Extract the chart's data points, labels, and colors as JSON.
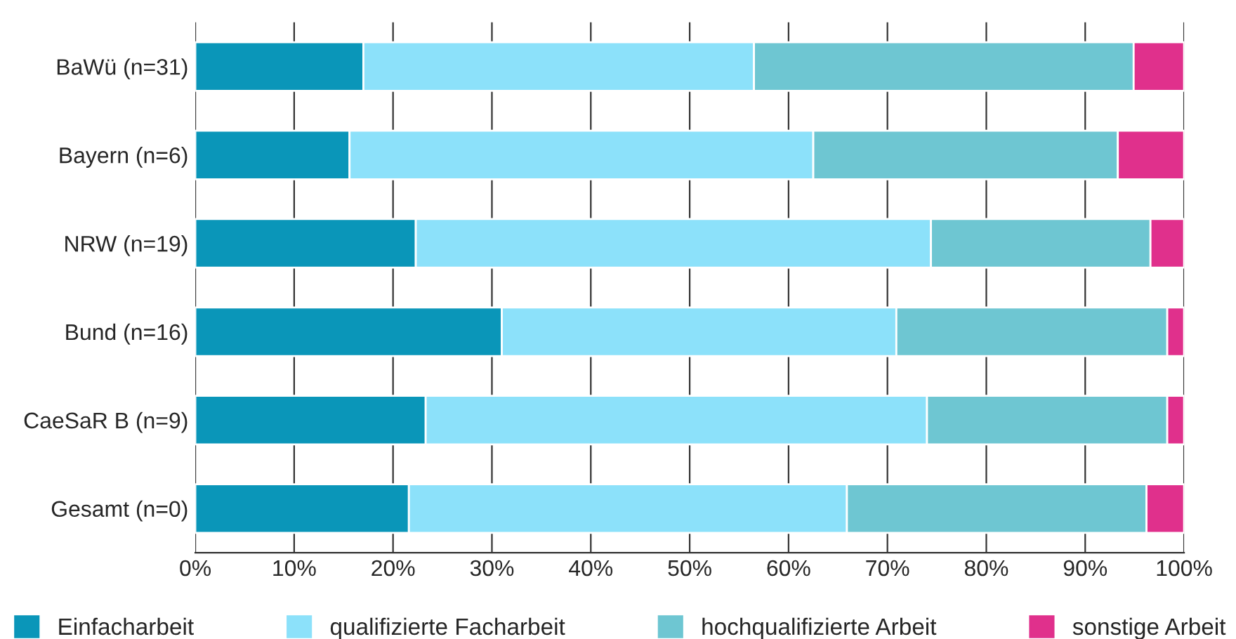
{
  "chart_data": {
    "type": "bar",
    "orientation": "horizontal",
    "stacked": true,
    "categories": [
      "BaWü (n=31)",
      "Bayern (n=6)",
      "NRW (n=19)",
      "Bund (n=16)",
      "CaeSaR B (n=9)",
      "Gesamt (n=0)"
    ],
    "series": [
      {
        "name": "Einfacharbeit",
        "color": "#0a96b9",
        "values": [
          17.0,
          15.6,
          22.3,
          31.0,
          23.3,
          21.6
        ]
      },
      {
        "name": "qualifizierte Facharbeit",
        "color": "#8ce1fa",
        "values": [
          39.5,
          46.9,
          52.1,
          39.9,
          50.7,
          44.3
        ]
      },
      {
        "name": "hochqualifizierte Arbeit",
        "color": "#6ec6d2",
        "values": [
          38.4,
          30.8,
          22.2,
          27.4,
          24.3,
          30.3
        ]
      },
      {
        "name": "sonstige Arbeit",
        "color": "#e0308c",
        "values": [
          5.1,
          6.7,
          3.4,
          1.7,
          1.7,
          3.8
        ]
      }
    ],
    "xlim": [
      0,
      100
    ],
    "xticks": [
      {
        "value": 0,
        "label": "0%"
      },
      {
        "value": 10,
        "label": "10%"
      },
      {
        "value": 20,
        "label": "20%"
      },
      {
        "value": 30,
        "label": "30%"
      },
      {
        "value": 40,
        "label": "40%"
      },
      {
        "value": 50,
        "label": "50%"
      },
      {
        "value": 60,
        "label": "60%"
      },
      {
        "value": 70,
        "label": "70%"
      },
      {
        "value": 80,
        "label": "80%"
      },
      {
        "value": 90,
        "label": "90%"
      },
      {
        "value": 100,
        "label": "100%"
      }
    ],
    "grid": "x",
    "legend": "bottom"
  }
}
